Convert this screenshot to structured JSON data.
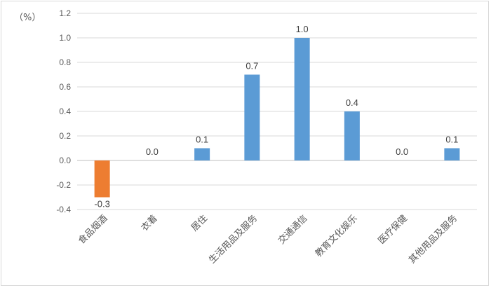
{
  "chart_data": {
    "type": "bar",
    "unit_label": "（%）",
    "categories": [
      "食品烟酒",
      "衣着",
      "居住",
      "生活用品及服务",
      "交通通信",
      "教育文化娱乐",
      "医疗保健",
      "其他用品及服务"
    ],
    "values": [
      -0.3,
      0.0,
      0.1,
      0.7,
      1.0,
      0.4,
      0.0,
      0.1
    ],
    "value_labels": [
      "-0.3",
      "0.0",
      "0.1",
      "0.7",
      "1.0",
      "0.4",
      "0.0",
      "0.1"
    ],
    "yticks": [
      "1.2",
      "1.0",
      "0.8",
      "0.6",
      "0.4",
      "0.2",
      "0.0",
      "-0.2",
      "-0.4"
    ],
    "ylim": [
      -0.4,
      1.2
    ],
    "grid": true,
    "colors": {
      "positive": "#5b9bd5",
      "negative": "#ed7d31"
    }
  }
}
